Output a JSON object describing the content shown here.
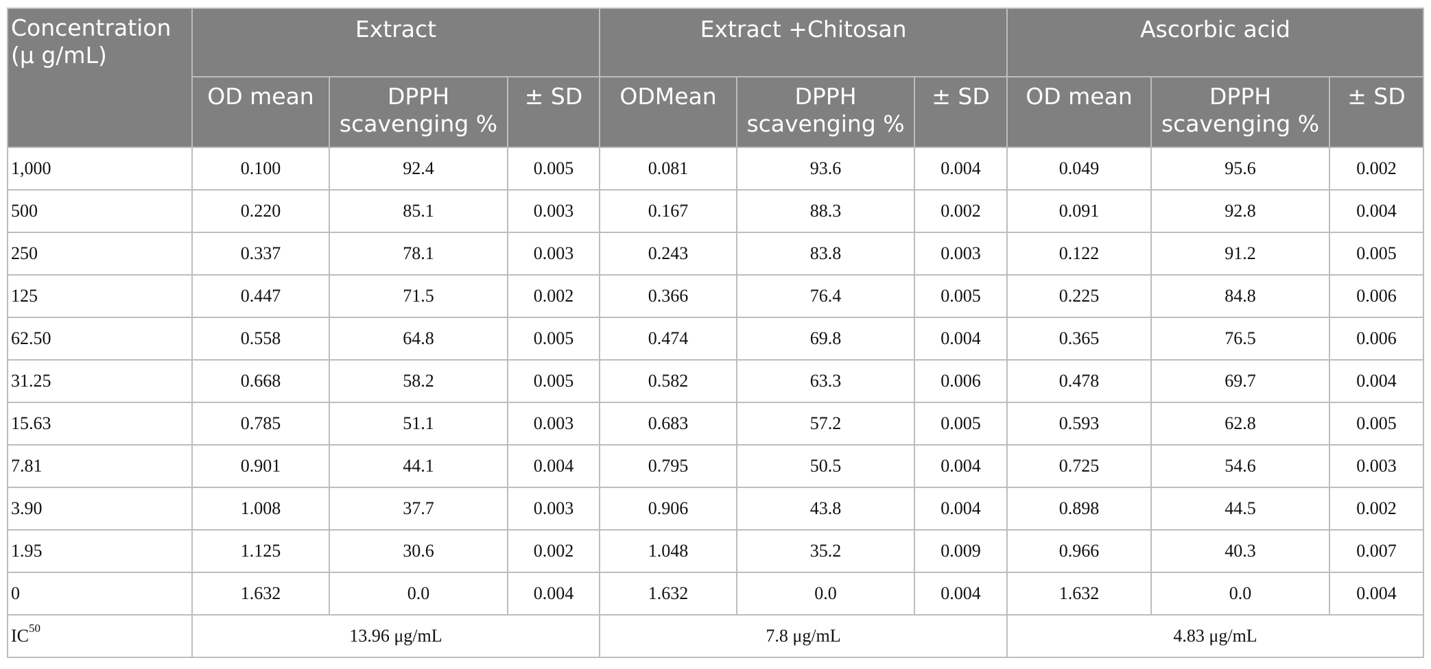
{
  "table": {
    "header": {
      "concentration": "Concentration (μ g/mL)",
      "groups": [
        "Extract",
        "Extract +Chitosan",
        "Ascorbic acid"
      ],
      "subheaders": [
        [
          "OD mean",
          "DPPH scavenging %",
          "± SD"
        ],
        [
          "ODMean",
          "DPPH scavenging %",
          "± SD"
        ],
        [
          "OD mean",
          "DPPH scavenging %",
          "± SD"
        ]
      ]
    },
    "rows": [
      [
        "1,000",
        "0.100",
        "92.4",
        "0.005",
        "0.081",
        "93.6",
        "0.004",
        "0.049",
        "95.6",
        "0.002"
      ],
      [
        "500",
        "0.220",
        "85.1",
        "0.003",
        "0.167",
        "88.3",
        "0.002",
        "0.091",
        "92.8",
        "0.004"
      ],
      [
        "250",
        "0.337",
        "78.1",
        "0.003",
        "0.243",
        "83.8",
        "0.003",
        "0.122",
        "91.2",
        "0.005"
      ],
      [
        "125",
        "0.447",
        "71.5",
        "0.002",
        "0.366",
        "76.4",
        "0.005",
        "0.225",
        "84.8",
        "0.006"
      ],
      [
        "62.50",
        "0.558",
        "64.8",
        "0.005",
        "0.474",
        "69.8",
        "0.004",
        "0.365",
        "76.5",
        "0.006"
      ],
      [
        "31.25",
        "0.668",
        "58.2",
        "0.005",
        "0.582",
        "63.3",
        "0.006",
        "0.478",
        "69.7",
        "0.004"
      ],
      [
        "15.63",
        "0.785",
        "51.1",
        "0.003",
        "0.683",
        "57.2",
        "0.005",
        "0.593",
        "62.8",
        "0.005"
      ],
      [
        "7.81",
        "0.901",
        "44.1",
        "0.004",
        "0.795",
        "50.5",
        "0.004",
        "0.725",
        "54.6",
        "0.003"
      ],
      [
        "3.90",
        "1.008",
        "37.7",
        "0.003",
        "0.906",
        "43.8",
        "0.004",
        "0.898",
        "44.5",
        "0.002"
      ],
      [
        "1.95",
        "1.125",
        "30.6",
        "0.002",
        "1.048",
        "35.2",
        "0.009",
        "0.966",
        "40.3",
        "0.007"
      ],
      [
        "0",
        "1.632",
        "0.0",
        "0.004",
        "1.632",
        "0.0",
        "0.004",
        "1.632",
        "0.0",
        "0.004"
      ]
    ],
    "ic50": {
      "label_base": "IC",
      "label_sup": "50",
      "values": [
        "13.96 μg/mL",
        "7.8 μg/mL",
        "4.83 μg/mL"
      ]
    }
  }
}
